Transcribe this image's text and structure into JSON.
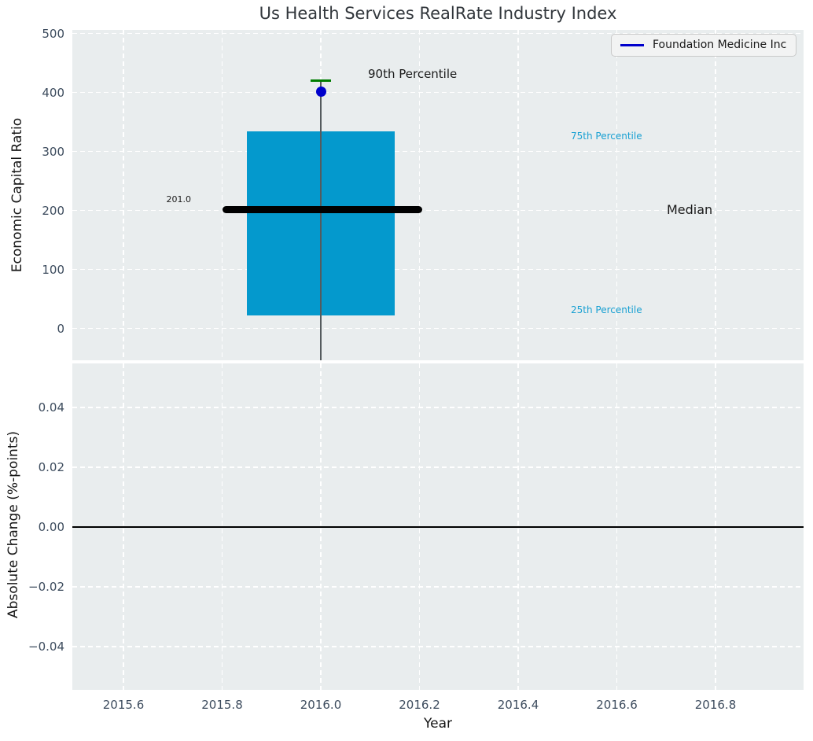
{
  "title": "Us Health Services RealRate Industry Index",
  "xlabel": "Year",
  "xlim": [
    2015.497,
    2016.978
  ],
  "xticks": [
    {
      "value": 2015.6,
      "label": "2015.6"
    },
    {
      "value": 2015.8,
      "label": "2015.8"
    },
    {
      "value": 2016.0,
      "label": "2016.0"
    },
    {
      "value": 2016.2,
      "label": "2016.2"
    },
    {
      "value": 2016.4,
      "label": "2016.4"
    },
    {
      "value": 2016.6,
      "label": "2016.6"
    },
    {
      "value": 2016.8,
      "label": "2016.8"
    }
  ],
  "legend": {
    "label": "Foundation Medicine Inc",
    "line_color": "#0000cc",
    "position": "upper right"
  },
  "colors": {
    "axes_background": "#e9edee",
    "grid": "#ffffff",
    "tick_label": "#3d4c5e",
    "box_fill": "#0499cd",
    "median_line": "#000000",
    "p90_cap": "#007d00",
    "company_point": "#0000cc",
    "whisker": "#555b5e",
    "percentile_text": "#18a0d2"
  },
  "chart_data": [
    {
      "type": "box",
      "ylabel": "Economic Capital Ratio",
      "ylim": [
        -54,
        506
      ],
      "grid": true,
      "yticks": [
        {
          "value": 0,
          "label": "0"
        },
        {
          "value": 100,
          "label": "100"
        },
        {
          "value": 200,
          "label": "200"
        },
        {
          "value": 300,
          "label": "300"
        },
        {
          "value": 400,
          "label": "400"
        },
        {
          "value": 500,
          "label": "500"
        }
      ],
      "box": {
        "x": 2016.0,
        "box_halfwidth_x": 0.15,
        "q1": 22,
        "median": 201.0,
        "q3": 334,
        "p90": 420,
        "median_label": "201.0",
        "median_line_span_x": [
          2015.8,
          2016.205
        ],
        "whisker_extends_to_axis_bottom": true
      },
      "point": {
        "series": "Foundation Medicine Inc",
        "x": 2016.0,
        "y": 402
      },
      "annotations": [
        {
          "id": "p90",
          "text": "90th Percentile",
          "color": "#1a1a1a"
        },
        {
          "id": "q3",
          "text": "75th Percentile",
          "color": "#18a0d2"
        },
        {
          "id": "median",
          "text": "Median",
          "color": "#1a1a1a"
        },
        {
          "id": "q1",
          "text": "25th Percentile",
          "color": "#18a0d2"
        },
        {
          "id": "median_value",
          "text": "201.0",
          "color": "#1a1a1a"
        }
      ]
    },
    {
      "type": "line",
      "ylabel": "Absolute Change (%-points)",
      "ylim": [
        -0.0545,
        0.0547
      ],
      "grid": true,
      "yticks": [
        {
          "value": -0.04,
          "label": "−0.04"
        },
        {
          "value": -0.02,
          "label": "−0.02"
        },
        {
          "value": 0.0,
          "label": "0.00"
        },
        {
          "value": 0.02,
          "label": "0.02"
        },
        {
          "value": 0.04,
          "label": "0.04"
        }
      ],
      "zero_line": 0.0,
      "series": []
    }
  ]
}
